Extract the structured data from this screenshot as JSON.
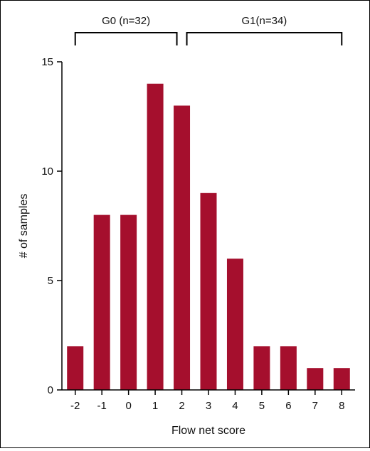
{
  "chart_data": {
    "type": "bar",
    "categories": [
      "-2",
      "-1",
      "0",
      "1",
      "2",
      "3",
      "4",
      "5",
      "6",
      "7",
      "8"
    ],
    "values": [
      2,
      8,
      8,
      14,
      13,
      9,
      6,
      2,
      2,
      1,
      1
    ],
    "xlabel": "Flow net score",
    "ylabel": "# of samples",
    "ylim": [
      0,
      15
    ],
    "yticks": [
      0,
      5,
      10,
      15
    ],
    "bar_color": "#a50f2d",
    "grid": false,
    "groups": [
      {
        "label": "G0 (n=32)",
        "from": "-2",
        "to": "2"
      },
      {
        "label": "G1(n=34)",
        "from": "2",
        "to": "8"
      }
    ]
  }
}
